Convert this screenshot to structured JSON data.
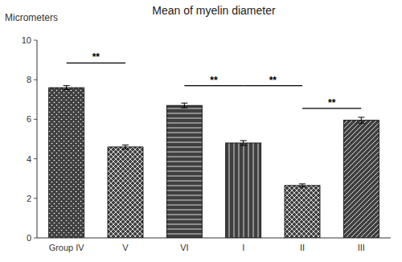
{
  "chart_data": {
    "type": "bar",
    "title": "Mean of myelin diameter",
    "ylabel": "Micrometers",
    "categories": [
      "Group IV",
      "V",
      "VI",
      "I",
      "II",
      "III"
    ],
    "values": [
      7.6,
      4.6,
      6.7,
      4.8,
      2.65,
      5.95
    ],
    "errors": [
      0.1,
      0.1,
      0.12,
      0.12,
      0.08,
      0.15
    ],
    "color": "#404040",
    "ylim": [
      0,
      10
    ],
    "yticks": [
      0,
      2,
      4,
      6,
      8,
      10
    ],
    "grid": false,
    "annotations": [
      {
        "text": "**",
        "from": "Group IV",
        "to": "V",
        "y": 8.85
      },
      {
        "text": "**",
        "from": "VI",
        "to": "I",
        "y": 7.7
      },
      {
        "text": "**",
        "from": "I",
        "to": "II",
        "y": 7.7
      },
      {
        "text": "**",
        "from": "II",
        "to": "III",
        "y": 6.55
      }
    ]
  }
}
